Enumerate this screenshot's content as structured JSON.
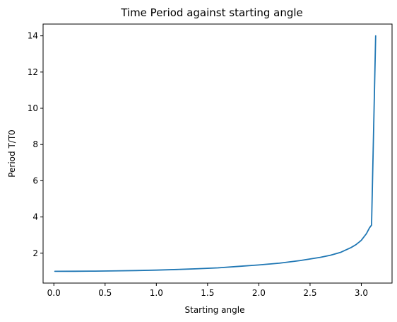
{
  "chart_data": {
    "type": "line",
    "title": "Time Period against starting angle",
    "xlabel": "Starting angle",
    "ylabel": "Period T/T0",
    "xlim": [
      -0.105,
      3.3
    ],
    "ylim": [
      0.35,
      14.65
    ],
    "xticks": [
      0.0,
      0.5,
      1.0,
      1.5,
      2.0,
      2.5,
      3.0
    ],
    "xtick_labels": [
      "0.0",
      "0.5",
      "1.0",
      "1.5",
      "2.0",
      "2.5",
      "3.0"
    ],
    "yticks": [
      2,
      4,
      6,
      8,
      10,
      12,
      14
    ],
    "ytick_labels": [
      "2",
      "4",
      "6",
      "8",
      "10",
      "12",
      "14"
    ],
    "grid": false,
    "series": [
      {
        "color": "#1f77b4",
        "x": [
          0.01,
          0.2,
          0.4,
          0.6,
          0.8,
          1.0,
          1.2,
          1.4,
          1.6,
          1.8,
          2.0,
          2.2,
          2.4,
          2.6,
          2.7,
          2.8,
          2.9,
          2.95,
          3.0,
          3.05,
          3.08,
          3.1,
          3.14
        ],
        "y": [
          1.0,
          1.003,
          1.01,
          1.023,
          1.041,
          1.066,
          1.1,
          1.14,
          1.19,
          1.27,
          1.35,
          1.45,
          1.59,
          1.77,
          1.89,
          2.05,
          2.31,
          2.48,
          2.71,
          3.08,
          3.4,
          3.55,
          14.0
        ]
      }
    ]
  }
}
